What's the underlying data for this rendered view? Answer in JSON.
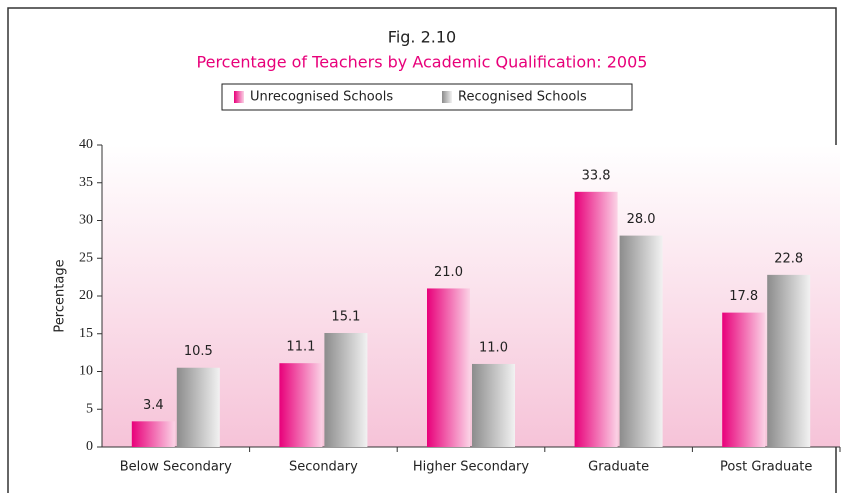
{
  "chart_data": {
    "type": "bar",
    "title": "Fig. 2.10",
    "subtitle": "Percentage of Teachers by Academic Qualification: 2005",
    "y_label": "Percentage",
    "categories": [
      "Below Secondary",
      "Secondary",
      "Higher Secondary",
      "Graduate",
      "Post Graduate"
    ],
    "series": [
      {
        "name": "Unrecognised Schools",
        "color": "#e8007a",
        "values": [
          3.4,
          11.1,
          21.0,
          33.8,
          17.8
        ],
        "value_labels": [
          "3.4",
          "11.1",
          "21.0",
          "33.8",
          "17.8"
        ]
      },
      {
        "name": "Recognised Schools",
        "color": "#999999",
        "values": [
          10.5,
          15.1,
          11.0,
          28.0,
          22.8
        ],
        "value_labels": [
          "10.5",
          "15.1",
          "11.0",
          "28.0",
          "22.8"
        ]
      }
    ],
    "ylim": [
      0,
      40
    ],
    "yticks": [
      0,
      5,
      10,
      15,
      20,
      25,
      30,
      35,
      40
    ]
  }
}
